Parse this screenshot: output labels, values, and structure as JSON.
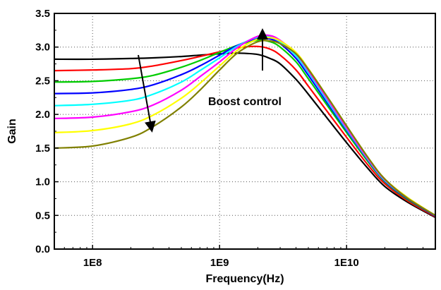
{
  "chart_data": {
    "type": "line",
    "title": "",
    "xlabel": "Frequency(Hz)",
    "ylabel": "Gain",
    "x_scale": "log",
    "xlim": [
      50000000,
      50000000000
    ],
    "ylim": [
      0.0,
      3.5
    ],
    "x_ticks": [
      100000000,
      1000000000,
      10000000000
    ],
    "x_tick_labels": [
      "1E8",
      "1E9",
      "1E10"
    ],
    "y_ticks": [
      0.0,
      0.5,
      1.0,
      1.5,
      2.0,
      2.5,
      3.0,
      3.5
    ],
    "y_tick_labels": [
      "0.0",
      "0.5",
      "1.0",
      "1.5",
      "2.0",
      "2.5",
      "3.0",
      "3.5"
    ],
    "grid": true,
    "legend": "none",
    "annotations": [
      {
        "text": "Boost control"
      }
    ],
    "x": [
      50000000,
      100000000,
      200000000,
      300000000,
      500000000,
      700000000,
      1000000000,
      1400000000,
      2000000000,
      2500000000,
      3000000000,
      4000000000,
      5000000000,
      7000000000,
      10000000000,
      15000000000,
      20000000000,
      30000000000,
      50000000000
    ],
    "series": [
      {
        "color": "#000000",
        "values": [
          2.82,
          2.82,
          2.83,
          2.84,
          2.86,
          2.88,
          2.9,
          2.91,
          2.89,
          2.83,
          2.75,
          2.52,
          2.3,
          1.95,
          1.58,
          1.18,
          0.93,
          0.7,
          0.47
        ]
      },
      {
        "color": "#ff0000",
        "values": [
          2.65,
          2.66,
          2.68,
          2.72,
          2.8,
          2.86,
          2.93,
          2.99,
          3.01,
          2.97,
          2.88,
          2.66,
          2.42,
          2.05,
          1.66,
          1.23,
          0.97,
          0.72,
          0.48
        ]
      },
      {
        "color": "#00cc00",
        "values": [
          2.48,
          2.49,
          2.53,
          2.58,
          2.7,
          2.8,
          2.92,
          3.03,
          3.1,
          3.08,
          3.0,
          2.78,
          2.53,
          2.14,
          1.73,
          1.28,
          1.0,
          0.74,
          0.49
        ]
      },
      {
        "color": "#0000ff",
        "values": [
          2.31,
          2.32,
          2.37,
          2.44,
          2.59,
          2.72,
          2.88,
          3.03,
          3.13,
          3.12,
          3.05,
          2.83,
          2.58,
          2.18,
          1.76,
          1.3,
          1.01,
          0.75,
          0.49
        ]
      },
      {
        "color": "#00ffff",
        "values": [
          2.13,
          2.15,
          2.21,
          2.3,
          2.48,
          2.65,
          2.84,
          3.02,
          3.15,
          3.15,
          3.08,
          2.87,
          2.62,
          2.21,
          1.78,
          1.31,
          1.02,
          0.76,
          0.5
        ]
      },
      {
        "color": "#ff00ff",
        "values": [
          1.94,
          1.96,
          2.04,
          2.14,
          2.36,
          2.56,
          2.78,
          3.0,
          3.16,
          3.17,
          3.1,
          2.9,
          2.65,
          2.24,
          1.8,
          1.32,
          1.03,
          0.76,
          0.5
        ]
      },
      {
        "color": "#ffff00",
        "values": [
          1.73,
          1.76,
          1.86,
          1.99,
          2.24,
          2.46,
          2.72,
          2.96,
          3.12,
          3.14,
          3.09,
          2.92,
          2.68,
          2.27,
          1.83,
          1.34,
          1.04,
          0.77,
          0.5
        ]
      },
      {
        "color": "#808000",
        "values": [
          1.5,
          1.53,
          1.66,
          1.82,
          2.11,
          2.36,
          2.66,
          2.92,
          3.08,
          3.09,
          3.05,
          2.9,
          2.67,
          2.27,
          1.83,
          1.34,
          1.04,
          0.76,
          0.5
        ]
      }
    ]
  }
}
